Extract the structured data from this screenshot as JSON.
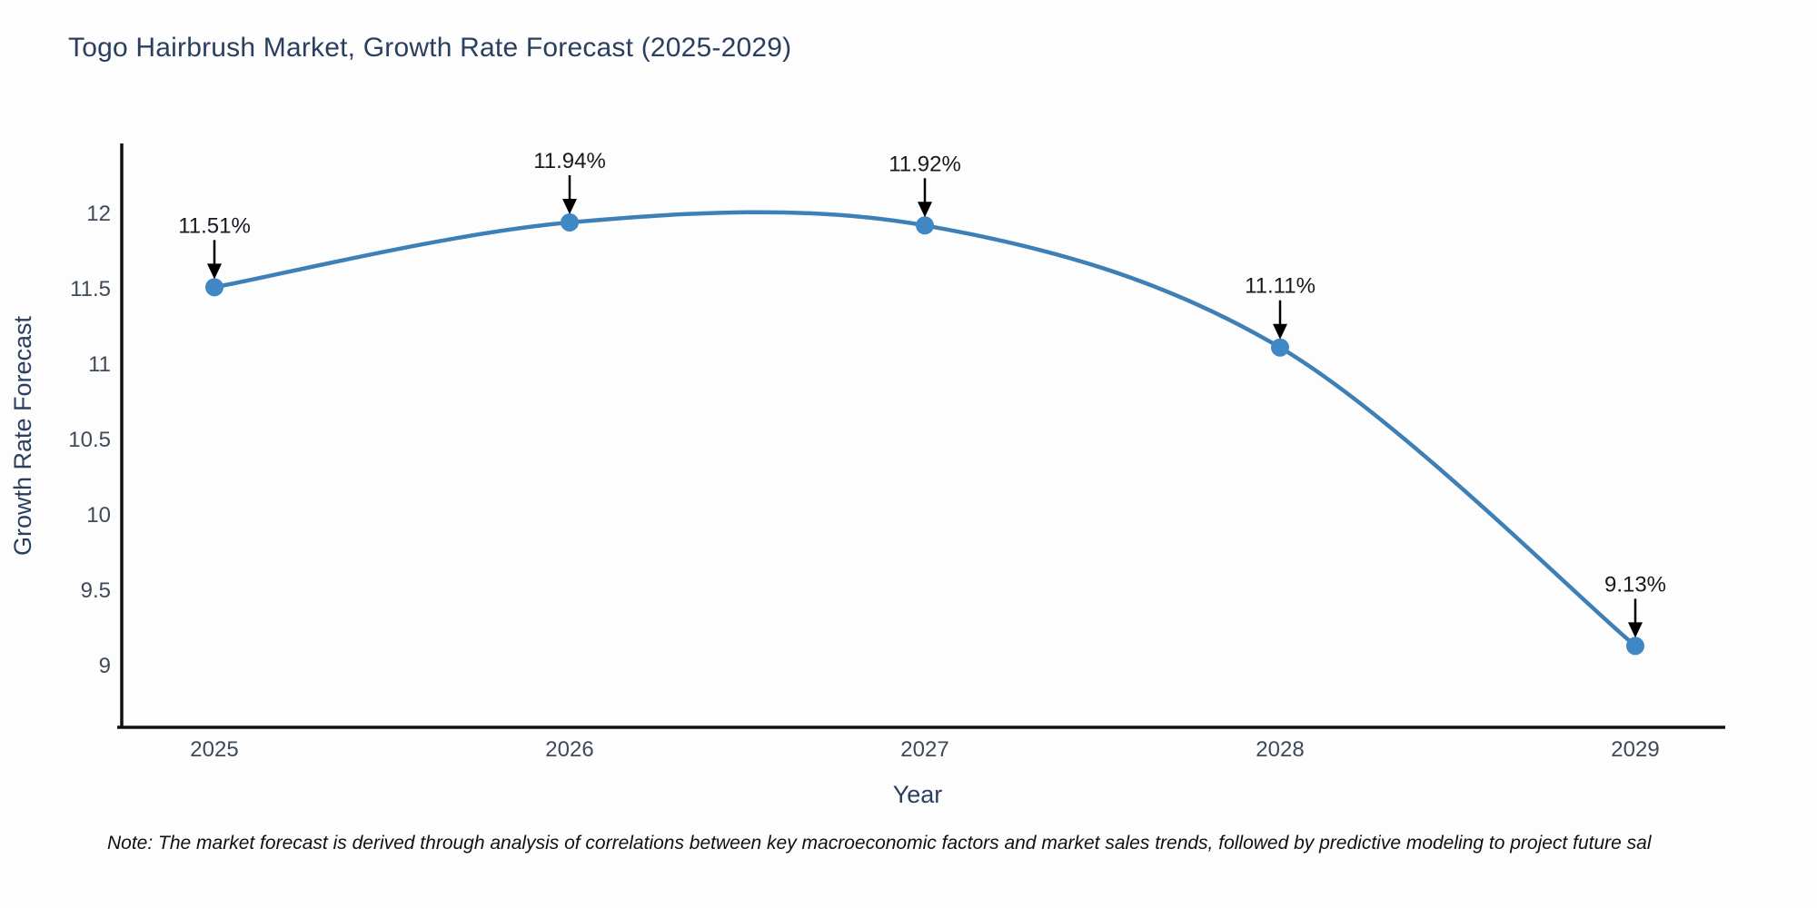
{
  "title": "Togo Hairbrush Market, Growth Rate Forecast (2025-2029)",
  "footnote": "Note: The market forecast is derived through analysis of correlations between key macroeconomic factors and market sales trends, followed by predictive modeling to project future sal",
  "chart_data": {
    "type": "line",
    "x": [
      "2025",
      "2026",
      "2027",
      "2028",
      "2029"
    ],
    "values": [
      11.51,
      11.94,
      11.92,
      11.11,
      9.13
    ],
    "point_labels": [
      "11.51%",
      "11.94%",
      "11.92%",
      "11.11%",
      "9.13%"
    ],
    "title": "Togo Hairbrush Market, Growth Rate Forecast (2025-2029)",
    "xlabel": "Year",
    "ylabel": "Growth Rate Forecast",
    "yticks": [
      "12",
      "11.5",
      "11",
      "10.5",
      "10",
      "9.5",
      "9"
    ],
    "ytick_values": [
      12,
      11.5,
      11,
      10.5,
      10,
      9.5,
      9
    ],
    "ylim": [
      8.6,
      12.46
    ],
    "grid": false,
    "legend_position": "none",
    "line_smoothing": "spline",
    "annotations": "value labels with down arrows above each point"
  },
  "colors": {
    "line": "#3e7fb5",
    "marker": "#3f88c5",
    "axis_line": "#111111",
    "tick_label": "#3f4a59",
    "title_text": "#2a3f5f",
    "point_label_text": "#16191e",
    "annotation_arrow": "#000000",
    "background": "#fdfdfd"
  }
}
